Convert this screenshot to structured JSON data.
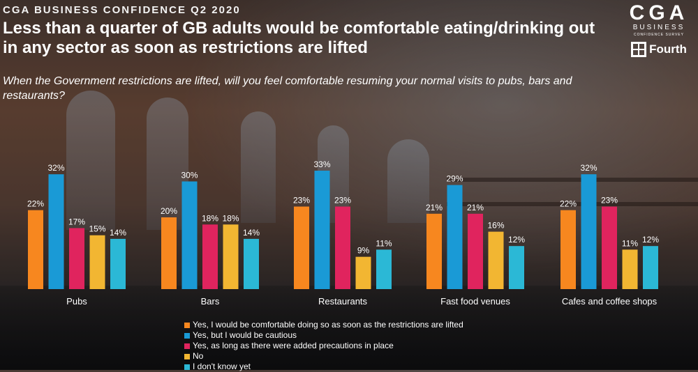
{
  "header": {
    "kicker": "CGA BUSINESS CONFIDENCE Q2 2020",
    "headline": "Less than a quarter of GB adults would be comfortable eating/drinking out in any sector as soon as restrictions are lifted",
    "question": "When the Government restrictions are lifted, will you feel comfortable resuming your normal visits to pubs, bars and restaurants?"
  },
  "logo": {
    "main": "CGA",
    "sub1": "BUSINESS",
    "sub2": "CONFIDENCE SURVEY",
    "partner": "Fourth"
  },
  "colors": {
    "yes_lifted": "#f7871f",
    "yes_cautious": "#1a9ad6",
    "yes_precautions": "#e0245e",
    "no": "#f2b632",
    "dont_know": "#2bb8d6"
  },
  "chart_data": {
    "type": "bar",
    "title": "",
    "xlabel": "",
    "ylabel": "",
    "ylim": [
      0,
      40
    ],
    "categories": [
      "Pubs",
      "Bars",
      "Restaurants",
      "Fast food venues",
      "Cafes and coffee shops"
    ],
    "series": [
      {
        "name": "Yes, I would be comfortable doing so as soon as the restrictions are lifted",
        "color": "#f7871f",
        "values": [
          22,
          20,
          23,
          21,
          22
        ]
      },
      {
        "name": "Yes, but I would be cautious",
        "color": "#1a9ad6",
        "values": [
          32,
          30,
          33,
          29,
          32
        ]
      },
      {
        "name": "Yes, as long as there were added precautions in place",
        "color": "#e0245e",
        "values": [
          17,
          18,
          23,
          21,
          23
        ]
      },
      {
        "name": "No",
        "color": "#f2b632",
        "values": [
          15,
          18,
          9,
          16,
          11
        ]
      },
      {
        "name": "I don't know yet",
        "color": "#2bb8d6",
        "values": [
          14,
          14,
          11,
          12,
          12
        ]
      }
    ],
    "value_suffix": "%",
    "legend_position": "bottom-center"
  }
}
